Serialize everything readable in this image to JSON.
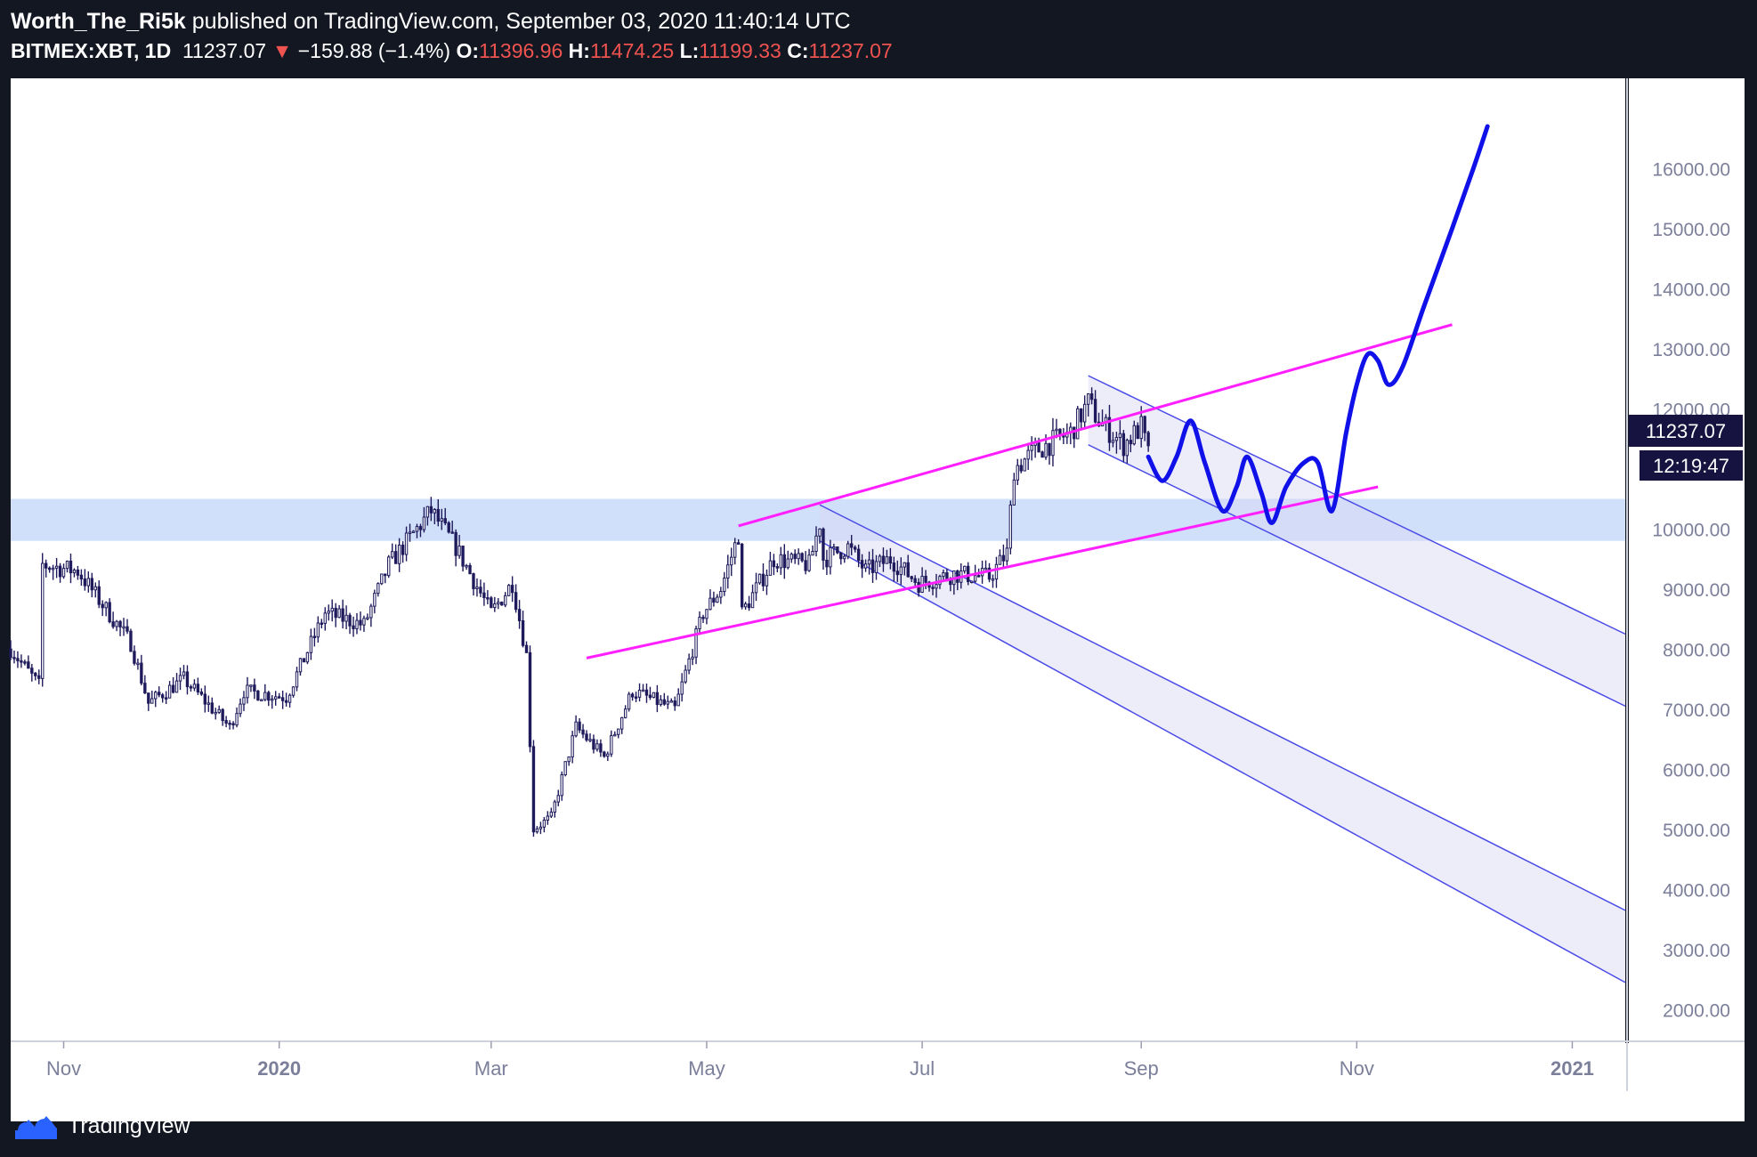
{
  "header": {
    "author": "Worth_The_Ri5k",
    "published": "published on TradingView.com, September 03, 2020 11:40:14 UTC",
    "symbol": "BITMEX:XBT, 1D",
    "last": "11237.07",
    "arrow": "▼",
    "change": "−159.88 (−1.4%)",
    "o_label": "O:",
    "o_value": "11396.96",
    "h_label": "H:",
    "h_value": "11474.25",
    "l_label": "L:",
    "l_value": "11199.33",
    "c_label": "C:",
    "c_value": "11237.07"
  },
  "footer": {
    "brand": "TradingView"
  },
  "colors": {
    "background": "#131722",
    "plot": "#ffffff",
    "candle": "#1e1a5c",
    "magenta": "#ff1fff",
    "projection": "#1010e8",
    "channel_line": "#4a4ae8",
    "channel_fill": "#d6d6f5",
    "zone": "#b9d0f7",
    "axis_text": "#7b7f9a",
    "price_tag": "#161340"
  },
  "chart_data": {
    "type": "candlestick",
    "symbol": "BITMEX:XBT",
    "interval": "1D",
    "y_range": [
      1500,
      17500
    ],
    "y_ticks": [
      2000,
      3000,
      4000,
      5000,
      6000,
      7000,
      8000,
      9000,
      10000,
      11000,
      12000,
      13000,
      14000,
      15000,
      16000
    ],
    "y_tick_labels": [
      "2000.00",
      "3000.00",
      "4000.00",
      "5000.00",
      "6000.00",
      "7000.00",
      "8000.00",
      "9000.00",
      "10000.00",
      "11000.00",
      "12000.00",
      "13000.00",
      "14000.00",
      "15000.00",
      "16000.00"
    ],
    "x_range": [
      "2019-10-17",
      "2021-01-16"
    ],
    "x_ticks": [
      {
        "date": "2019-11-01",
        "label": "Nov"
      },
      {
        "date": "2020-01-01",
        "label": "2020"
      },
      {
        "date": "2020-03-01",
        "label": "Mar"
      },
      {
        "date": "2020-05-01",
        "label": "May"
      },
      {
        "date": "2020-07-01",
        "label": "Jul"
      },
      {
        "date": "2020-09-01",
        "label": "Sep"
      },
      {
        "date": "2020-11-01",
        "label": "Nov"
      },
      {
        "date": "2021-01-01",
        "label": "2021"
      }
    ],
    "price_anchors": [
      [
        "2019-10-17",
        8000
      ],
      [
        "2019-10-25",
        7400
      ],
      [
        "2019-10-26",
        9400
      ],
      [
        "2019-11-05",
        9300
      ],
      [
        "2019-11-20",
        8100
      ],
      [
        "2019-11-25",
        7100
      ],
      [
        "2019-12-05",
        7500
      ],
      [
        "2019-12-18",
        6700
      ],
      [
        "2019-12-22",
        7300
      ],
      [
        "2020-01-03",
        7200
      ],
      [
        "2020-01-14",
        8600
      ],
      [
        "2020-01-25",
        8400
      ],
      [
        "2020-02-01",
        9400
      ],
      [
        "2020-02-13",
        10300
      ],
      [
        "2020-02-20",
        9700
      ],
      [
        "2020-03-01",
        8600
      ],
      [
        "2020-03-07",
        9100
      ],
      [
        "2020-03-11",
        7900
      ],
      [
        "2020-03-13",
        5000
      ],
      [
        "2020-03-18",
        5200
      ],
      [
        "2020-03-25",
        6700
      ],
      [
        "2020-04-02",
        6200
      ],
      [
        "2020-04-10",
        7300
      ],
      [
        "2020-04-18",
        7100
      ],
      [
        "2020-04-22",
        7000
      ],
      [
        "2020-04-30",
        8600
      ],
      [
        "2020-05-05",
        9000
      ],
      [
        "2020-05-10",
        9900
      ],
      [
        "2020-05-11",
        8600
      ],
      [
        "2020-05-20",
        9500
      ],
      [
        "2020-05-30",
        9400
      ],
      [
        "2020-06-02",
        10100
      ],
      [
        "2020-06-03",
        9500
      ],
      [
        "2020-06-10",
        9700
      ],
      [
        "2020-06-15",
        9300
      ],
      [
        "2020-06-22",
        9500
      ],
      [
        "2020-06-30",
        9100
      ],
      [
        "2020-07-10",
        9250
      ],
      [
        "2020-07-20",
        9200
      ],
      [
        "2020-07-25",
        9600
      ],
      [
        "2020-07-27",
        11000
      ],
      [
        "2020-08-02",
        11300
      ],
      [
        "2020-08-12",
        11600
      ],
      [
        "2020-08-17",
        12100
      ],
      [
        "2020-08-20",
        11800
      ],
      [
        "2020-08-27",
        11400
      ],
      [
        "2020-09-01",
        11700
      ],
      [
        "2020-09-03",
        11237
      ]
    ],
    "last_price": "11237.07",
    "countdown": "12:19:47",
    "support_zone": [
      9800,
      10500
    ],
    "annotations": {
      "upper_trend_line": {
        "from": [
          "2020-05-10",
          10050
        ],
        "to": [
          "2020-11-28",
          13400
        ]
      },
      "lower_trend_line": {
        "from": [
          "2020-03-28",
          7850
        ],
        "to": [
          "2020-11-07",
          10700
        ]
      },
      "channel_1": {
        "upper": {
          "from": [
            "2020-06-02",
            10400
          ],
          "to": [
            "2021-01-16",
            3650
          ]
        },
        "lower": {
          "from": [
            "2020-06-02",
            9800
          ],
          "to": [
            "2021-01-16",
            2450
          ]
        }
      },
      "channel_2": {
        "upper": {
          "from": [
            "2020-08-17",
            12550
          ],
          "to": [
            "2021-01-16",
            8250
          ]
        },
        "lower": {
          "from": [
            "2020-08-17",
            11400
          ],
          "to": [
            "2021-01-16",
            7050
          ]
        }
      },
      "projection": [
        [
          "2020-09-03",
          11200
        ],
        [
          "2020-09-07",
          10800
        ],
        [
          "2020-09-11",
          11200
        ],
        [
          "2020-09-15",
          11800
        ],
        [
          "2020-09-19",
          11100
        ],
        [
          "2020-09-24",
          10300
        ],
        [
          "2020-09-28",
          10700
        ],
        [
          "2020-10-01",
          11200
        ],
        [
          "2020-10-05",
          10600
        ],
        [
          "2020-10-08",
          10100
        ],
        [
          "2020-10-12",
          10700
        ],
        [
          "2020-10-17",
          11100
        ],
        [
          "2020-10-21",
          11100
        ],
        [
          "2020-10-25",
          10300
        ],
        [
          "2020-10-29",
          11600
        ],
        [
          "2020-11-01",
          12400
        ],
        [
          "2020-11-04",
          12900
        ],
        [
          "2020-11-07",
          12800
        ],
        [
          "2020-11-10",
          12400
        ],
        [
          "2020-11-14",
          12700
        ],
        [
          "2020-11-20",
          13700
        ],
        [
          "2020-11-28",
          15000
        ],
        [
          "2020-12-04",
          16000
        ],
        [
          "2020-12-08",
          16700
        ]
      ]
    }
  }
}
